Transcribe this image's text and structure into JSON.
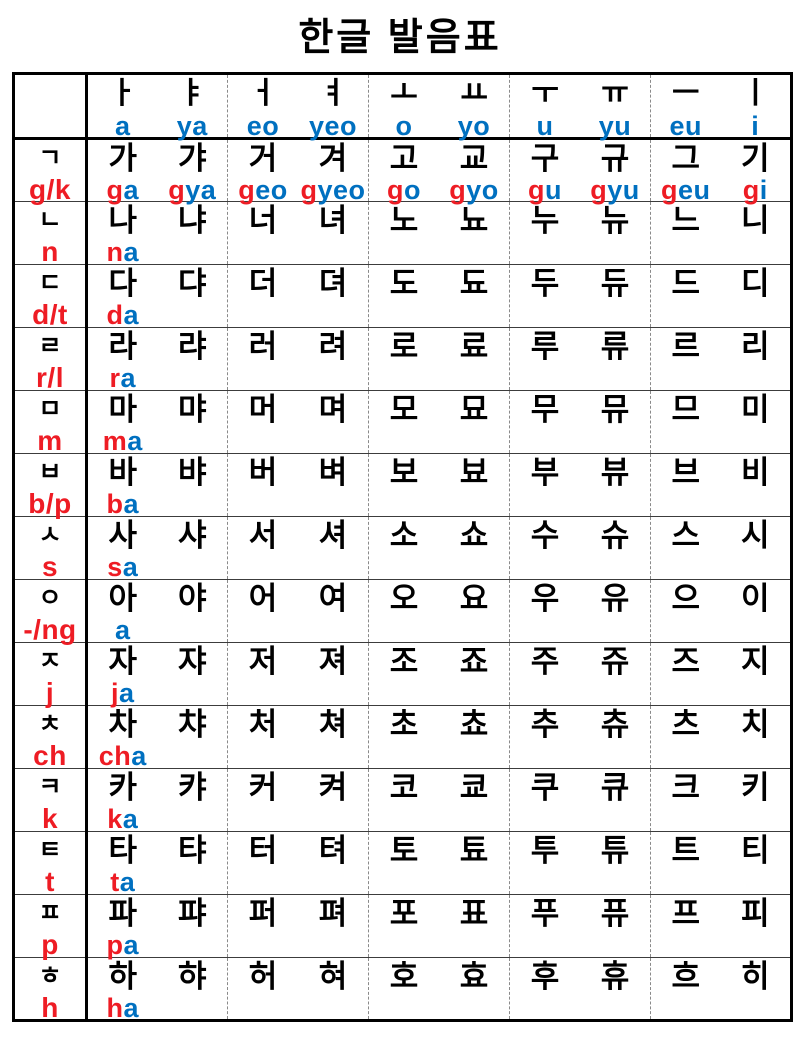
{
  "title": "한글 발음표",
  "colors": {
    "consonant_red": "#ee1c24",
    "vowel_blue": "#0070c0",
    "grid_black": "#000000",
    "row_line": "#3c3c3c",
    "group_dash_gray": "#8a8a8a"
  },
  "vowels": [
    {
      "jamo": "ㅏ",
      "roman": "a"
    },
    {
      "jamo": "ㅑ",
      "roman": "ya"
    },
    {
      "jamo": "ㅓ",
      "roman": "eo"
    },
    {
      "jamo": "ㅕ",
      "roman": "yeo"
    },
    {
      "jamo": "ㅗ",
      "roman": "o"
    },
    {
      "jamo": "ㅛ",
      "roman": "yo"
    },
    {
      "jamo": "ㅜ",
      "roman": "u"
    },
    {
      "jamo": "ㅠ",
      "roman": "yu"
    },
    {
      "jamo": "ㅡ",
      "roman": "eu"
    },
    {
      "jamo": "ㅣ",
      "roman": "i"
    }
  ],
  "rows": [
    {
      "jamo": "ㄱ",
      "roman": "g/k",
      "syllables": [
        "가",
        "갸",
        "거",
        "겨",
        "고",
        "교",
        "구",
        "규",
        "그",
        "기"
      ],
      "romanizations": [
        {
          "c": "g",
          "v": "a"
        },
        {
          "c": "g",
          "v": "ya"
        },
        {
          "c": "g",
          "v": "eo"
        },
        {
          "c": "g",
          "v": "yeo"
        },
        {
          "c": "g",
          "v": "o"
        },
        {
          "c": "g",
          "v": "yo"
        },
        {
          "c": "g",
          "v": "u"
        },
        {
          "c": "g",
          "v": "yu"
        },
        {
          "c": "g",
          "v": "eu"
        },
        {
          "c": "g",
          "v": "i"
        }
      ]
    },
    {
      "jamo": "ㄴ",
      "roman": "n",
      "syllables": [
        "나",
        "냐",
        "너",
        "녀",
        "노",
        "뇨",
        "누",
        "뉴",
        "느",
        "니"
      ],
      "romanizations": [
        {
          "c": "n",
          "v": "a"
        }
      ]
    },
    {
      "jamo": "ㄷ",
      "roman": "d/t",
      "syllables": [
        "다",
        "댜",
        "더",
        "뎌",
        "도",
        "됴",
        "두",
        "듀",
        "드",
        "디"
      ],
      "romanizations": [
        {
          "c": "d",
          "v": "a"
        }
      ]
    },
    {
      "jamo": "ㄹ",
      "roman": "r/l",
      "syllables": [
        "라",
        "랴",
        "러",
        "려",
        "로",
        "료",
        "루",
        "류",
        "르",
        "리"
      ],
      "romanizations": [
        {
          "c": "r",
          "v": "a"
        }
      ]
    },
    {
      "jamo": "ㅁ",
      "roman": "m",
      "syllables": [
        "마",
        "먀",
        "머",
        "며",
        "모",
        "묘",
        "무",
        "뮤",
        "므",
        "미"
      ],
      "romanizations": [
        {
          "c": "m",
          "v": "a"
        }
      ]
    },
    {
      "jamo": "ㅂ",
      "roman": "b/p",
      "syllables": [
        "바",
        "뱌",
        "버",
        "벼",
        "보",
        "뵤",
        "부",
        "뷰",
        "브",
        "비"
      ],
      "romanizations": [
        {
          "c": "b",
          "v": "a"
        }
      ]
    },
    {
      "jamo": "ㅅ",
      "roman": "s",
      "syllables": [
        "사",
        "샤",
        "서",
        "셔",
        "소",
        "쇼",
        "수",
        "슈",
        "스",
        "시"
      ],
      "romanizations": [
        {
          "c": "s",
          "v": "a"
        }
      ]
    },
    {
      "jamo": "ㅇ",
      "roman": "-/ng",
      "syllables": [
        "아",
        "야",
        "어",
        "여",
        "오",
        "요",
        "우",
        "유",
        "으",
        "이"
      ],
      "romanizations": [
        {
          "c": "",
          "v": "a"
        }
      ]
    },
    {
      "jamo": "ㅈ",
      "roman": "j",
      "syllables": [
        "자",
        "쟈",
        "저",
        "져",
        "조",
        "죠",
        "주",
        "쥬",
        "즈",
        "지"
      ],
      "romanizations": [
        {
          "c": "j",
          "v": "a"
        }
      ]
    },
    {
      "jamo": "ㅊ",
      "roman": "ch",
      "syllables": [
        "차",
        "챠",
        "처",
        "쳐",
        "초",
        "쵸",
        "추",
        "츄",
        "츠",
        "치"
      ],
      "romanizations": [
        {
          "c": "ch",
          "v": "a"
        }
      ]
    },
    {
      "jamo": "ㅋ",
      "roman": "k",
      "syllables": [
        "카",
        "캬",
        "커",
        "켜",
        "코",
        "쿄",
        "쿠",
        "큐",
        "크",
        "키"
      ],
      "romanizations": [
        {
          "c": "k",
          "v": "a"
        }
      ]
    },
    {
      "jamo": "ㅌ",
      "roman": "t",
      "syllables": [
        "타",
        "탸",
        "터",
        "텨",
        "토",
        "툐",
        "투",
        "튜",
        "트",
        "티"
      ],
      "romanizations": [
        {
          "c": "t",
          "v": "a"
        }
      ]
    },
    {
      "jamo": "ㅍ",
      "roman": "p",
      "syllables": [
        "파",
        "퍄",
        "퍼",
        "펴",
        "포",
        "표",
        "푸",
        "퓨",
        "프",
        "피"
      ],
      "romanizations": [
        {
          "c": "p",
          "v": "a"
        }
      ]
    },
    {
      "jamo": "ㅎ",
      "roman": "h",
      "syllables": [
        "하",
        "햐",
        "허",
        "혀",
        "호",
        "효",
        "후",
        "휴",
        "흐",
        "히"
      ],
      "romanizations": [
        {
          "c": "h",
          "v": "a"
        }
      ]
    }
  ]
}
